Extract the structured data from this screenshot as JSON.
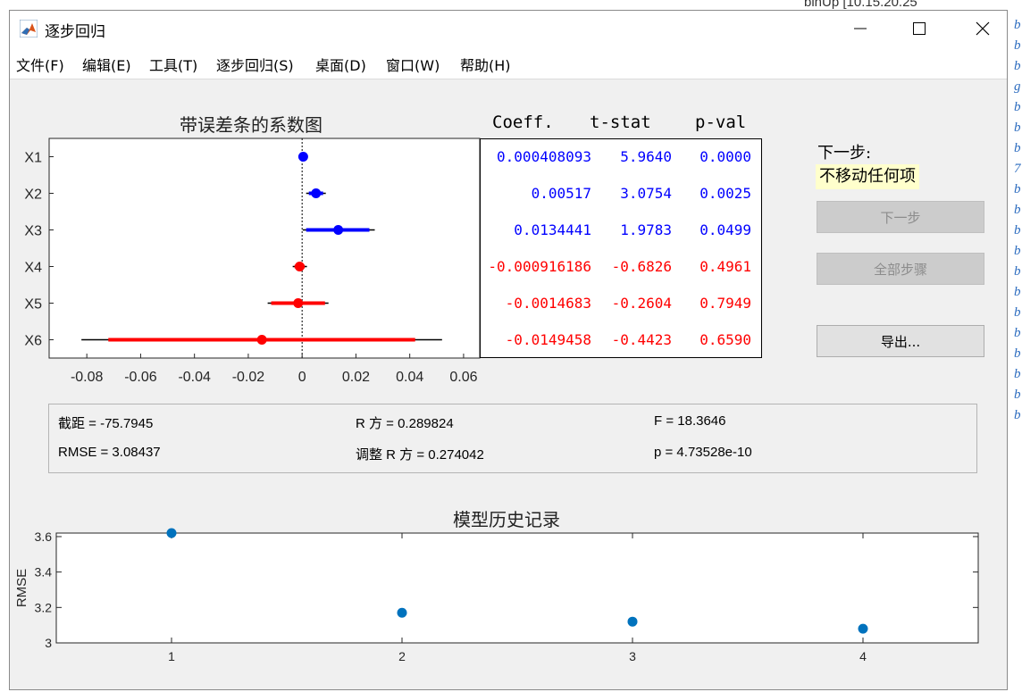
{
  "window": {
    "title": "逐步回归"
  },
  "menu": [
    "文件(F)",
    "编辑(E)",
    "工具(T)",
    "逐步回归(S)",
    "桌面(D)",
    "窗口(W)",
    "帮助(H)"
  ],
  "coef_plot": {
    "title": "带误差条的系数图",
    "x_ticks": [
      "-0.08",
      "-0.06",
      "-0.04",
      "-0.02",
      "0",
      "0.02",
      "0.04",
      "0.06"
    ],
    "x_range": [
      -0.094,
      0.066
    ]
  },
  "table": {
    "headers": [
      "Coeff.",
      "t-stat",
      "p-val"
    ],
    "rows": [
      {
        "name": "X1",
        "coef": "0.000408093",
        "t": "5.9640",
        "p": "0.0000",
        "in_model": true
      },
      {
        "name": "X2",
        "coef": "0.00517",
        "t": "3.0754",
        "p": "0.0025",
        "in_model": true
      },
      {
        "name": "X3",
        "coef": "0.0134441",
        "t": "1.9783",
        "p": "0.0499",
        "in_model": true
      },
      {
        "name": "X4",
        "coef": "-0.000916186",
        "t": "-0.6826",
        "p": "0.4961",
        "in_model": false
      },
      {
        "name": "X5",
        "coef": "-0.0014683",
        "t": "-0.2604",
        "p": "0.7949",
        "in_model": false
      },
      {
        "name": "X6",
        "coef": "-0.0149458",
        "t": "-0.4423",
        "p": "0.6590",
        "in_model": false
      }
    ]
  },
  "chart_data": [
    {
      "type": "scatter",
      "title": "带误差条的系数图",
      "categories": [
        "X1",
        "X2",
        "X3",
        "X4",
        "X5",
        "X6"
      ],
      "values": [
        0.000408,
        0.00517,
        0.01344,
        -0.000916,
        -0.00147,
        -0.01495
      ],
      "ci_inner": [
        [
          0.0003,
          0.0005
        ],
        [
          0.0025,
          0.0078
        ],
        [
          0.0015,
          0.025
        ],
        [
          -0.0028,
          0.001
        ],
        [
          -0.0115,
          0.0085
        ],
        [
          -0.072,
          0.042
        ]
      ],
      "ci_outer": [
        [
          0.0002,
          0.0006
        ],
        [
          0.0015,
          0.0088
        ],
        [
          0.0002,
          0.027
        ],
        [
          -0.0035,
          0.0018
        ],
        [
          -0.0128,
          0.0098
        ],
        [
          -0.082,
          0.052
        ]
      ],
      "xlim": [
        -0.094,
        0.066
      ],
      "colors": {
        "in": "#0000ff",
        "out": "#ff0000"
      }
    },
    {
      "type": "scatter",
      "title": "模型历史记录",
      "ylabel": "RMSE",
      "x": [
        1,
        2,
        3,
        4
      ],
      "y": [
        3.62,
        3.17,
        3.12,
        3.08
      ],
      "xlim": [
        0.5,
        4.5
      ],
      "ylim": [
        3.0,
        3.62
      ],
      "x_ticks": [
        "1",
        "2",
        "3",
        "4"
      ],
      "y_ticks": [
        "3",
        "3.2",
        "3.4",
        "3.6"
      ],
      "color": "#0072bd"
    }
  ],
  "next_step": {
    "label": "下一步:",
    "value": "不移动任何项"
  },
  "buttons": {
    "next": "下一步",
    "all_steps": "全部步骤",
    "export": "导出..."
  },
  "stats": {
    "intercept": "截距 = -75.7945",
    "rsq": "R 方 = 0.289824",
    "f": "F = 18.3646",
    "rmse": "RMSE = 3.08437",
    "adj_rsq": "调整 R 方 = 0.274042",
    "p": "p = 4.73528e-10"
  },
  "history": {
    "title": "模型历史记录",
    "ylabel": "RMSE"
  },
  "background": {
    "top_text": "binUp        [10.15.20.25",
    "items": [
      "b",
      "b",
      "b",
      "g",
      "b",
      "b",
      "b",
      "7",
      "b",
      "b",
      "b",
      "b",
      "b",
      "b",
      "b",
      "b",
      "b",
      "b",
      "b",
      "b"
    ]
  }
}
